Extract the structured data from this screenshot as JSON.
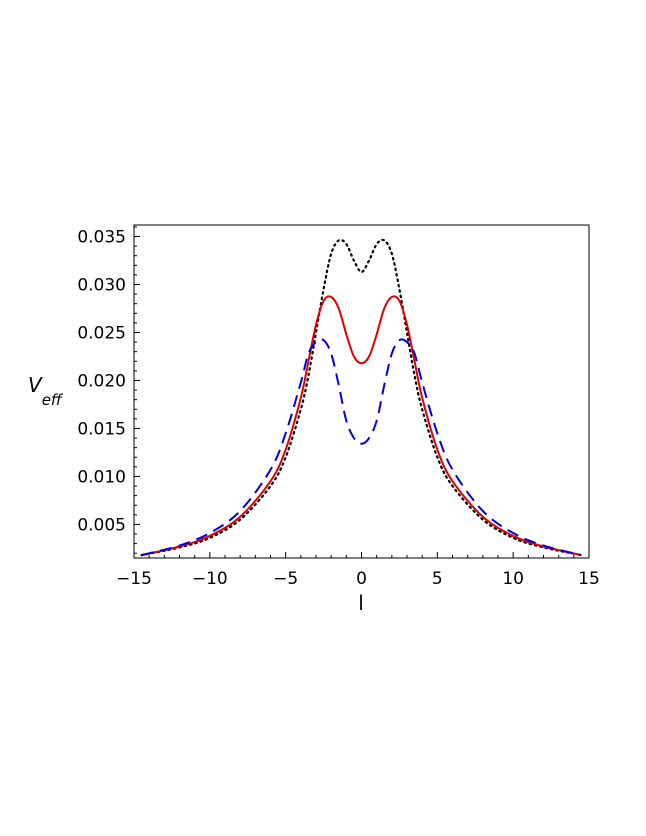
{
  "chart_data": {
    "type": "line",
    "xlabel": "l",
    "ylabel_main": "V",
    "ylabel_sub": "eff",
    "xlim": [
      -15,
      15
    ],
    "ylim": [
      0.0015,
      0.0362
    ],
    "x_ticks": [
      -15,
      -10,
      -5,
      0,
      5,
      10,
      15
    ],
    "x_tick_labels": [
      "−15",
      "−10",
      "−5",
      "0",
      "5",
      "10",
      "15"
    ],
    "y_ticks": [
      0.005,
      0.01,
      0.015,
      0.02,
      0.025,
      0.03,
      0.035
    ],
    "y_tick_labels": [
      "0.005",
      "0.010",
      "0.015",
      "0.020",
      "0.025",
      "0.030",
      "0.035"
    ],
    "grid": false,
    "series": [
      {
        "style": "dotted",
        "color": "#000000",
        "x": [
          -14.5,
          -12,
          -10,
          -8,
          -6,
          -5,
          -4,
          -3.5,
          -3,
          -2.5,
          -2,
          -1.5,
          -1,
          -0.5,
          0,
          0.5,
          1,
          1.5,
          2,
          2.5,
          3,
          3.5,
          4,
          5,
          6,
          8,
          10,
          12,
          14.5
        ],
        "y": [
          0.0018,
          0.0026,
          0.0036,
          0.0055,
          0.009,
          0.012,
          0.017,
          0.0205,
          0.025,
          0.0295,
          0.0332,
          0.0346,
          0.0342,
          0.0325,
          0.0313,
          0.0325,
          0.0342,
          0.0346,
          0.0332,
          0.0295,
          0.025,
          0.0205,
          0.017,
          0.012,
          0.009,
          0.0055,
          0.0036,
          0.0026,
          0.0018
        ]
      },
      {
        "style": "solid",
        "color": "#e00000",
        "x": [
          -14.5,
          -12,
          -10,
          -8,
          -6,
          -5,
          -4,
          -3.5,
          -3,
          -2.5,
          -2,
          -1.5,
          -1,
          -0.5,
          0,
          0.5,
          1,
          1.5,
          2,
          2.5,
          3,
          3.5,
          4,
          5,
          6,
          8,
          10,
          12,
          14.5
        ],
        "y": [
          0.0018,
          0.0027,
          0.0038,
          0.0058,
          0.0095,
          0.0128,
          0.0182,
          0.022,
          0.0258,
          0.0283,
          0.0287,
          0.0275,
          0.0248,
          0.0225,
          0.0218,
          0.0225,
          0.0248,
          0.0275,
          0.0287,
          0.0283,
          0.0258,
          0.022,
          0.0182,
          0.0128,
          0.0095,
          0.0058,
          0.0038,
          0.0027,
          0.0018
        ]
      },
      {
        "style": "dashed",
        "color": "#0000e0",
        "x": [
          -14.5,
          -12,
          -10,
          -8,
          -6,
          -5,
          -4,
          -3.5,
          -3,
          -2.5,
          -2,
          -1.5,
          -1,
          -0.5,
          0,
          0.5,
          1,
          1.5,
          2,
          2.5,
          3,
          3.5,
          4,
          5,
          6,
          8,
          10,
          12,
          14.5
        ],
        "y": [
          0.0018,
          0.0028,
          0.0041,
          0.0064,
          0.0107,
          0.0145,
          0.0198,
          0.0228,
          0.024,
          0.0242,
          0.0228,
          0.0195,
          0.0158,
          0.014,
          0.0134,
          0.014,
          0.0158,
          0.0195,
          0.0228,
          0.0242,
          0.024,
          0.0228,
          0.0198,
          0.0145,
          0.0107,
          0.0064,
          0.0041,
          0.0028,
          0.0018
        ]
      }
    ]
  }
}
